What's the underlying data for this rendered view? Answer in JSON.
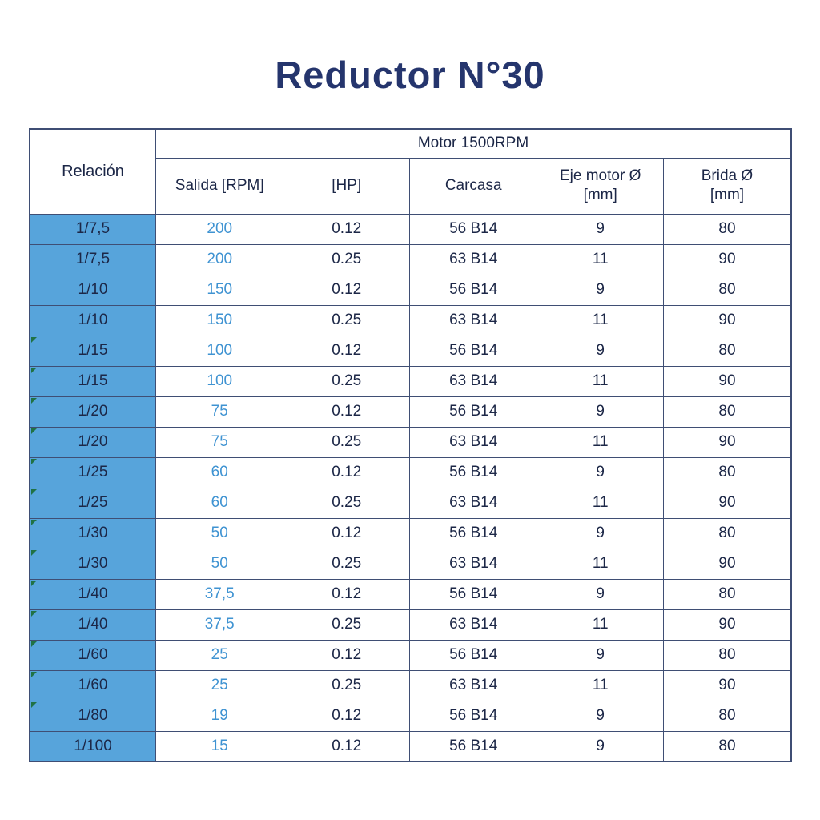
{
  "title": "Reductor N°30",
  "colors": {
    "title_navy": "#25356d",
    "text_navy": "#1c2747",
    "relacion_cell_blue": "#57a4db",
    "salida_text_blue": "#3f93d2",
    "border_navy": "#3f4e74",
    "corner_marker_green": "#207245",
    "background": "#ffffff"
  },
  "chart_data": {
    "type": "table",
    "title": "Reductor N°30",
    "group_header": "Motor 1500RPM",
    "columns": [
      "Relación",
      "Salida [RPM]",
      "[HP]",
      "Carcasa",
      "Eje motor Ø [mm]",
      "Brida Ø [mm]"
    ],
    "rows": [
      [
        "1/7,5",
        "200",
        "0.12",
        "56 B14",
        "9",
        "80"
      ],
      [
        "1/7,5",
        "200",
        "0.25",
        "63 B14",
        "11",
        "90"
      ],
      [
        "1/10",
        "150",
        "0.12",
        "56 B14",
        "9",
        "80"
      ],
      [
        "1/10",
        "150",
        "0.25",
        "63 B14",
        "11",
        "90"
      ],
      [
        "1/15",
        "100",
        "0.12",
        "56 B14",
        "9",
        "80"
      ],
      [
        "1/15",
        "100",
        "0.25",
        "63 B14",
        "11",
        "90"
      ],
      [
        "1/20",
        "75",
        "0.12",
        "56 B14",
        "9",
        "80"
      ],
      [
        "1/20",
        "75",
        "0.25",
        "63 B14",
        "11",
        "90"
      ],
      [
        "1/25",
        "60",
        "0.12",
        "56 B14",
        "9",
        "80"
      ],
      [
        "1/25",
        "60",
        "0.25",
        "63 B14",
        "11",
        "90"
      ],
      [
        "1/30",
        "50",
        "0.12",
        "56 B14",
        "9",
        "80"
      ],
      [
        "1/30",
        "50",
        "0.25",
        "63 B14",
        "11",
        "90"
      ],
      [
        "1/40",
        "37,5",
        "0.12",
        "56 B14",
        "9",
        "80"
      ],
      [
        "1/40",
        "37,5",
        "0.25",
        "63 B14",
        "11",
        "90"
      ],
      [
        "1/60",
        "25",
        "0.12",
        "56 B14",
        "9",
        "80"
      ],
      [
        "1/60",
        "25",
        "0.25",
        "63 B14",
        "11",
        "90"
      ],
      [
        "1/80",
        "19",
        "0.12",
        "56 B14",
        "9",
        "80"
      ],
      [
        "1/100",
        "15",
        "0.12",
        "56 B14",
        "9",
        "80"
      ]
    ],
    "green_marker_row_indices": [
      4,
      5,
      6,
      7,
      8,
      9,
      10,
      11,
      12,
      13,
      14,
      15,
      16
    ],
    "layout_hints": {
      "relacion_column_spans_both_header_rows": true,
      "group_header_spans_columns": 5,
      "all_cells_centered": true
    }
  }
}
